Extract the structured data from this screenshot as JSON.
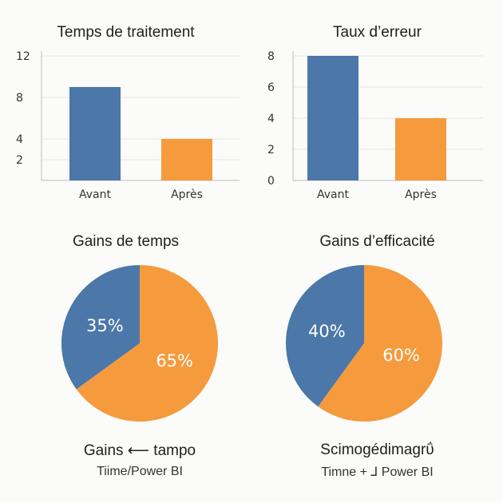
{
  "colors": {
    "blue": "#4b77a9",
    "orange": "#f59b3d",
    "axis": "#bdbdbd",
    "grid": "#e6e6e6"
  },
  "chart_data": [
    {
      "type": "bar",
      "title": "Temps de traitement",
      "categories": [
        "Avant",
        "Après"
      ],
      "values": [
        9,
        4
      ],
      "yticks": [
        2,
        4,
        8,
        12
      ],
      "ylim": [
        0,
        12
      ],
      "ylabel": "",
      "xlabel": "",
      "grid": true
    },
    {
      "type": "bar",
      "title": "Taux d’erreur",
      "categories": [
        "Avant",
        "Après"
      ],
      "values": [
        8,
        4
      ],
      "yticks": [
        0,
        2,
        4,
        6,
        8
      ],
      "ylim": [
        0,
        8
      ],
      "ylabel": "",
      "xlabel": "",
      "grid": true
    },
    {
      "type": "pie",
      "title": "Gains de temps",
      "labels": [
        "35%",
        "65%"
      ],
      "values": [
        35,
        65
      ],
      "colors": [
        "#4b77a9",
        "#f59b3d"
      ]
    },
    {
      "type": "pie",
      "title": "Gains d’efficacité",
      "labels": [
        "40%",
        "60%"
      ],
      "values": [
        40,
        60
      ],
      "colors": [
        "#4b77a9",
        "#f59b3d"
      ]
    }
  ],
  "captions": [
    {
      "line1": "Gains ⟵ tampo",
      "line2": "Tiime/Power BI"
    },
    {
      "line1": "Scimogédimagrΰ",
      "line2": "Timne + ⅃ Power BI"
    }
  ]
}
